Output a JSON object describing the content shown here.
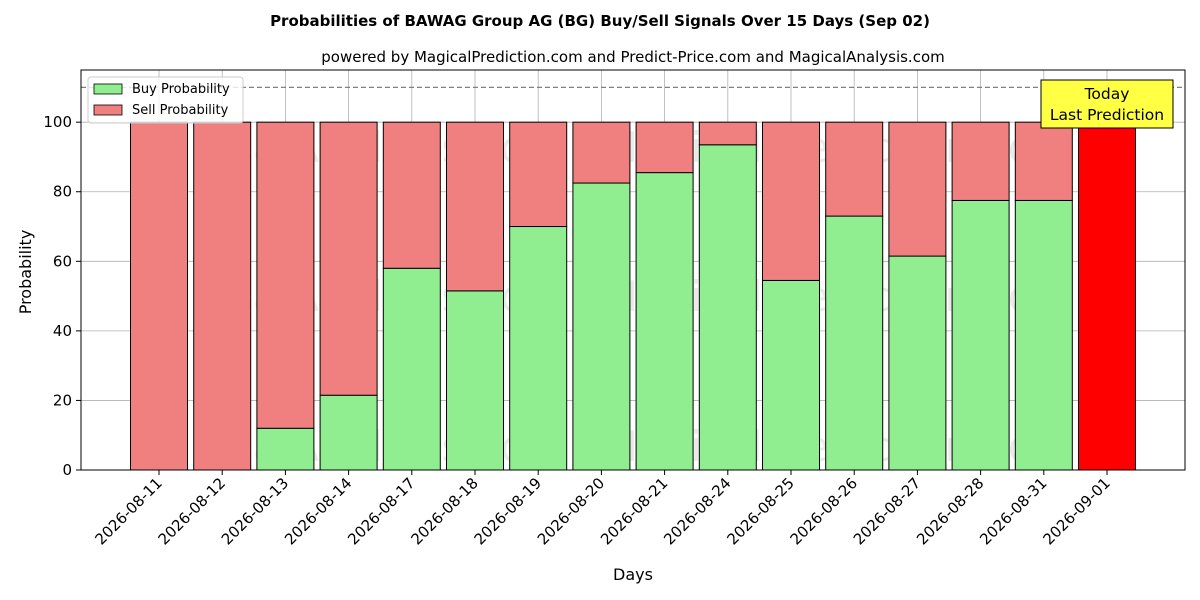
{
  "chart_data": {
    "type": "bar",
    "stacked": true,
    "title": "Probabilities of BAWAG Group AG (BG) Buy/Sell Signals Over 15 Days (Sep 02)",
    "subtitle": "powered by MagicalPrediction.com and Predict-Price.com and MagicalAnalysis.com",
    "xlabel": "Days",
    "ylabel": "Probability",
    "ylim": [
      0,
      115
    ],
    "yticks": [
      0,
      20,
      40,
      60,
      80,
      100
    ],
    "grid": true,
    "legend_position": "top-left",
    "reference_line": {
      "y": 110,
      "style": "dashed"
    },
    "categories": [
      "2026-08-11",
      "2026-08-12",
      "2026-08-13",
      "2026-08-14",
      "2026-08-17",
      "2026-08-18",
      "2026-08-19",
      "2026-08-20",
      "2026-08-21",
      "2026-08-24",
      "2026-08-25",
      "2026-08-26",
      "2026-08-27",
      "2026-08-28",
      "2026-08-31",
      "2026-09-01"
    ],
    "series": [
      {
        "name": "Buy Probability",
        "color": "#90ee90",
        "values": [
          0,
          0,
          12,
          21.5,
          58,
          51.5,
          70,
          82.5,
          85.5,
          93.5,
          54.5,
          73,
          61.5,
          77.5,
          77.5,
          0
        ]
      },
      {
        "name": "Sell Probability",
        "color": "#f08080",
        "values": [
          100,
          100,
          88,
          78.5,
          42,
          48.5,
          30,
          17.5,
          14.5,
          6.5,
          45.5,
          27,
          38.5,
          22.5,
          22.5,
          100
        ]
      }
    ],
    "highlight": {
      "category": "2026-09-01",
      "color": "#ff0000"
    },
    "annotation": {
      "lines": [
        "Today",
        "Last Prediction"
      ],
      "background": "#ffff44"
    },
    "watermarks": [
      "MagicalAnalysis.com",
      "MagicalPrediction.com"
    ]
  }
}
